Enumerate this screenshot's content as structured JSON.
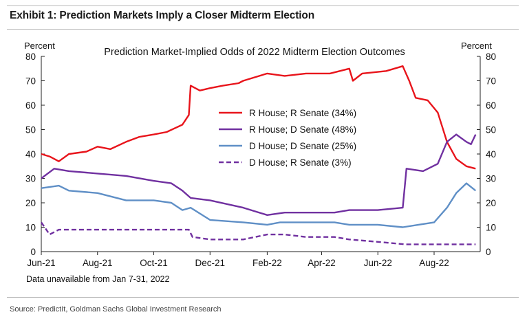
{
  "exhibit_title": "Exhibit 1: Prediction Markets Imply a Closer Midterm Election",
  "source": "Source: PredictIt, Goldman Sachs Global Investment Research",
  "chart_data": {
    "type": "line",
    "title": "Prediction Market-Implied Odds of 2022 Midterm Election Outcomes",
    "ylabel_left": "Percent",
    "ylabel_right": "Percent",
    "ylim": [
      0,
      80
    ],
    "y_ticks": [
      "0",
      "10",
      "20",
      "30",
      "40",
      "50",
      "60",
      "70",
      "80"
    ],
    "x_ticks": [
      "Jun-21",
      "Aug-21",
      "Oct-21",
      "Dec-21",
      "Feb-22",
      "Apr-22",
      "Jun-22",
      "Aug-22"
    ],
    "x_range": [
      "2021-06-01",
      "2022-09-20"
    ],
    "note": "Data unavailable from Jan 7-31, 2022",
    "legend_position": "center",
    "series": [
      {
        "name": "R House; R Senate (34%)",
        "color": "#e8141b",
        "dash": "solid",
        "points": [
          [
            "2021-06-01",
            40
          ],
          [
            "2021-06-10",
            39
          ],
          [
            "2021-06-20",
            37
          ],
          [
            "2021-07-01",
            40
          ],
          [
            "2021-07-20",
            41
          ],
          [
            "2021-08-01",
            43
          ],
          [
            "2021-08-15",
            42
          ],
          [
            "2021-09-01",
            45
          ],
          [
            "2021-09-15",
            47
          ],
          [
            "2021-10-01",
            48
          ],
          [
            "2021-10-15",
            49
          ],
          [
            "2021-11-01",
            52
          ],
          [
            "2021-11-08",
            56
          ],
          [
            "2021-11-10",
            68
          ],
          [
            "2021-11-20",
            66
          ],
          [
            "2021-12-01",
            67
          ],
          [
            "2021-12-15",
            68
          ],
          [
            "2022-01-01",
            69
          ],
          [
            "2022-01-06",
            70
          ],
          [
            "2022-02-01",
            73
          ],
          [
            "2022-02-20",
            72
          ],
          [
            "2022-03-15",
            73
          ],
          [
            "2022-04-10",
            73
          ],
          [
            "2022-05-01",
            75
          ],
          [
            "2022-05-05",
            70
          ],
          [
            "2022-05-15",
            73
          ],
          [
            "2022-06-10",
            74
          ],
          [
            "2022-06-28",
            76
          ],
          [
            "2022-07-05",
            70
          ],
          [
            "2022-07-12",
            63
          ],
          [
            "2022-07-25",
            62
          ],
          [
            "2022-08-05",
            57
          ],
          [
            "2022-08-15",
            45
          ],
          [
            "2022-08-25",
            38
          ],
          [
            "2022-09-05",
            35
          ],
          [
            "2022-09-15",
            34
          ]
        ]
      },
      {
        "name": "R House; D Senate (48%)",
        "color": "#7030a0",
        "dash": "solid",
        "points": [
          [
            "2021-06-01",
            30
          ],
          [
            "2021-06-15",
            34
          ],
          [
            "2021-07-01",
            33
          ],
          [
            "2021-08-01",
            32
          ],
          [
            "2021-09-01",
            31
          ],
          [
            "2021-10-01",
            29
          ],
          [
            "2021-10-20",
            28
          ],
          [
            "2021-11-01",
            25
          ],
          [
            "2021-11-10",
            22
          ],
          [
            "2021-12-01",
            21
          ],
          [
            "2022-01-06",
            18
          ],
          [
            "2022-02-01",
            15
          ],
          [
            "2022-02-20",
            16
          ],
          [
            "2022-03-15",
            16
          ],
          [
            "2022-04-15",
            16
          ],
          [
            "2022-05-01",
            17
          ],
          [
            "2022-06-01",
            17
          ],
          [
            "2022-06-28",
            18
          ],
          [
            "2022-07-02",
            34
          ],
          [
            "2022-07-20",
            33
          ],
          [
            "2022-08-05",
            36
          ],
          [
            "2022-08-15",
            45
          ],
          [
            "2022-08-25",
            48
          ],
          [
            "2022-09-05",
            45
          ],
          [
            "2022-09-10",
            44
          ],
          [
            "2022-09-15",
            48
          ]
        ]
      },
      {
        "name": "D House; D Senate (25%)",
        "color": "#5f8fc6",
        "dash": "solid",
        "points": [
          [
            "2021-06-01",
            26
          ],
          [
            "2021-06-20",
            27
          ],
          [
            "2021-07-01",
            25
          ],
          [
            "2021-08-01",
            24
          ],
          [
            "2021-09-01",
            21
          ],
          [
            "2021-10-01",
            21
          ],
          [
            "2021-10-20",
            20
          ],
          [
            "2021-11-01",
            17
          ],
          [
            "2021-11-10",
            18
          ],
          [
            "2021-12-01",
            13
          ],
          [
            "2022-01-06",
            12
          ],
          [
            "2022-02-01",
            11
          ],
          [
            "2022-02-15",
            12
          ],
          [
            "2022-03-15",
            12
          ],
          [
            "2022-04-15",
            12
          ],
          [
            "2022-05-01",
            11
          ],
          [
            "2022-06-01",
            11
          ],
          [
            "2022-06-28",
            10
          ],
          [
            "2022-07-15",
            11
          ],
          [
            "2022-08-01",
            12
          ],
          [
            "2022-08-15",
            18
          ],
          [
            "2022-08-25",
            24
          ],
          [
            "2022-09-05",
            28
          ],
          [
            "2022-09-15",
            25
          ]
        ]
      },
      {
        "name": "D House; R Senate (3%)",
        "color": "#7030a0",
        "dash": "dashed",
        "points": [
          [
            "2021-06-01",
            12
          ],
          [
            "2021-06-10",
            7
          ],
          [
            "2021-06-20",
            9
          ],
          [
            "2021-08-01",
            9
          ],
          [
            "2021-09-01",
            9
          ],
          [
            "2021-10-01",
            9
          ],
          [
            "2021-11-01",
            9
          ],
          [
            "2021-11-08",
            9
          ],
          [
            "2021-11-12",
            6
          ],
          [
            "2021-12-01",
            5
          ],
          [
            "2022-01-06",
            5
          ],
          [
            "2022-02-01",
            7
          ],
          [
            "2022-02-20",
            7
          ],
          [
            "2022-03-15",
            6
          ],
          [
            "2022-04-15",
            6
          ],
          [
            "2022-05-01",
            5
          ],
          [
            "2022-06-01",
            4
          ],
          [
            "2022-07-01",
            3
          ],
          [
            "2022-08-01",
            3
          ],
          [
            "2022-08-25",
            3
          ],
          [
            "2022-09-05",
            3
          ],
          [
            "2022-09-15",
            3
          ]
        ]
      }
    ]
  }
}
